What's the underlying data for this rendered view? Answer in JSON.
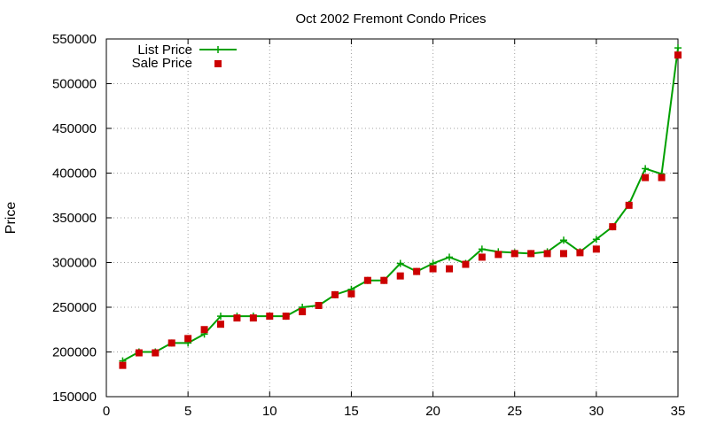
{
  "chart_data": {
    "type": "line",
    "title": "Oct 2002 Fremont Condo Prices",
    "xlabel": "",
    "ylabel": "Price",
    "xlim": [
      0,
      35
    ],
    "ylim": [
      150000,
      550000
    ],
    "x_ticks": [
      "0",
      "5",
      "10",
      "15",
      "20",
      "25",
      "30",
      "35"
    ],
    "y_ticks": [
      "150000",
      "200000",
      "250000",
      "300000",
      "350000",
      "400000",
      "450000",
      "500000",
      "550000"
    ],
    "grid": true,
    "legend_position": "top-left",
    "x": [
      1,
      2,
      3,
      4,
      5,
      6,
      7,
      8,
      9,
      10,
      11,
      12,
      13,
      14,
      15,
      16,
      17,
      18,
      19,
      20,
      21,
      22,
      23,
      24,
      25,
      26,
      27,
      28,
      29,
      30,
      31,
      32,
      33,
      34,
      35
    ],
    "series": [
      {
        "name": "List Price",
        "style": "line-points",
        "color": "#00a000",
        "marker": "plus",
        "values": [
          190000,
          200000,
          200000,
          210000,
          210000,
          220000,
          240000,
          240000,
          240000,
          240000,
          240000,
          250000,
          252000,
          264000,
          270000,
          280000,
          280000,
          299000,
          290000,
          299000,
          306000,
          299000,
          315000,
          312000,
          311000,
          310000,
          312000,
          325000,
          312000,
          326000,
          340000,
          365000,
          405000,
          399000,
          540000
        ]
      },
      {
        "name": "Sale Price",
        "style": "points",
        "color": "#cc0000",
        "marker": "square",
        "values": [
          185000,
          199000,
          199000,
          210000,
          215000,
          225000,
          231000,
          238000,
          238000,
          240000,
          240000,
          245000,
          252000,
          264000,
          265000,
          280000,
          280000,
          285000,
          290000,
          293000,
          293000,
          298000,
          306000,
          309000,
          310000,
          310000,
          310000,
          310000,
          311000,
          315000,
          340000,
          364000,
          395000,
          395000,
          532000
        ]
      }
    ]
  }
}
